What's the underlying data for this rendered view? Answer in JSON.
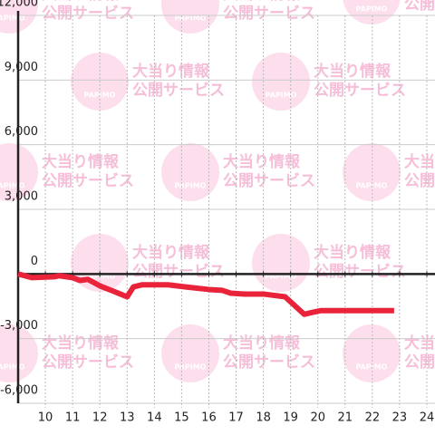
{
  "chart_data": {
    "type": "line",
    "watermark": {
      "logo": "PAPIMO",
      "line1": "大当り情報",
      "line2": "公開サービス"
    },
    "x": [
      9,
      9.5,
      10.33,
      10.5,
      11,
      11.26,
      11.56,
      12,
      12.5,
      13,
      13.23,
      13.56,
      14.5,
      15.15,
      16,
      16.5,
      16.8,
      17.3,
      18,
      18.8,
      19.5,
      19.8,
      20.1,
      22.8
    ],
    "series": [
      {
        "color": "#e8233a",
        "values": [
          0,
          -170,
          -130,
          -80,
          -170,
          -300,
          -250,
          -550,
          -800,
          -1060,
          -600,
          -500,
          -500,
          -600,
          -720,
          -760,
          -890,
          -930,
          -930,
          -1060,
          -1870,
          -1780,
          -1700,
          -1700
        ]
      }
    ],
    "xlim": [
      9,
      24.3
    ],
    "xticks": [
      10,
      11,
      12,
      13,
      14,
      15,
      16,
      17,
      18,
      19,
      20,
      21,
      22,
      23,
      24
    ],
    "ylim": [
      -6000,
      12000
    ],
    "yticks": [
      {
        "value": -6000,
        "label": "-6,000"
      },
      {
        "value": -3000,
        "label": "-3,000"
      },
      0,
      {
        "value": 3000,
        "label": "3,000"
      },
      {
        "value": 6000,
        "label": "6,000"
      },
      {
        "value": 9000,
        "label": "9,000"
      },
      {
        "value": 12000,
        "label": "12,000"
      }
    ],
    "grid": true
  }
}
